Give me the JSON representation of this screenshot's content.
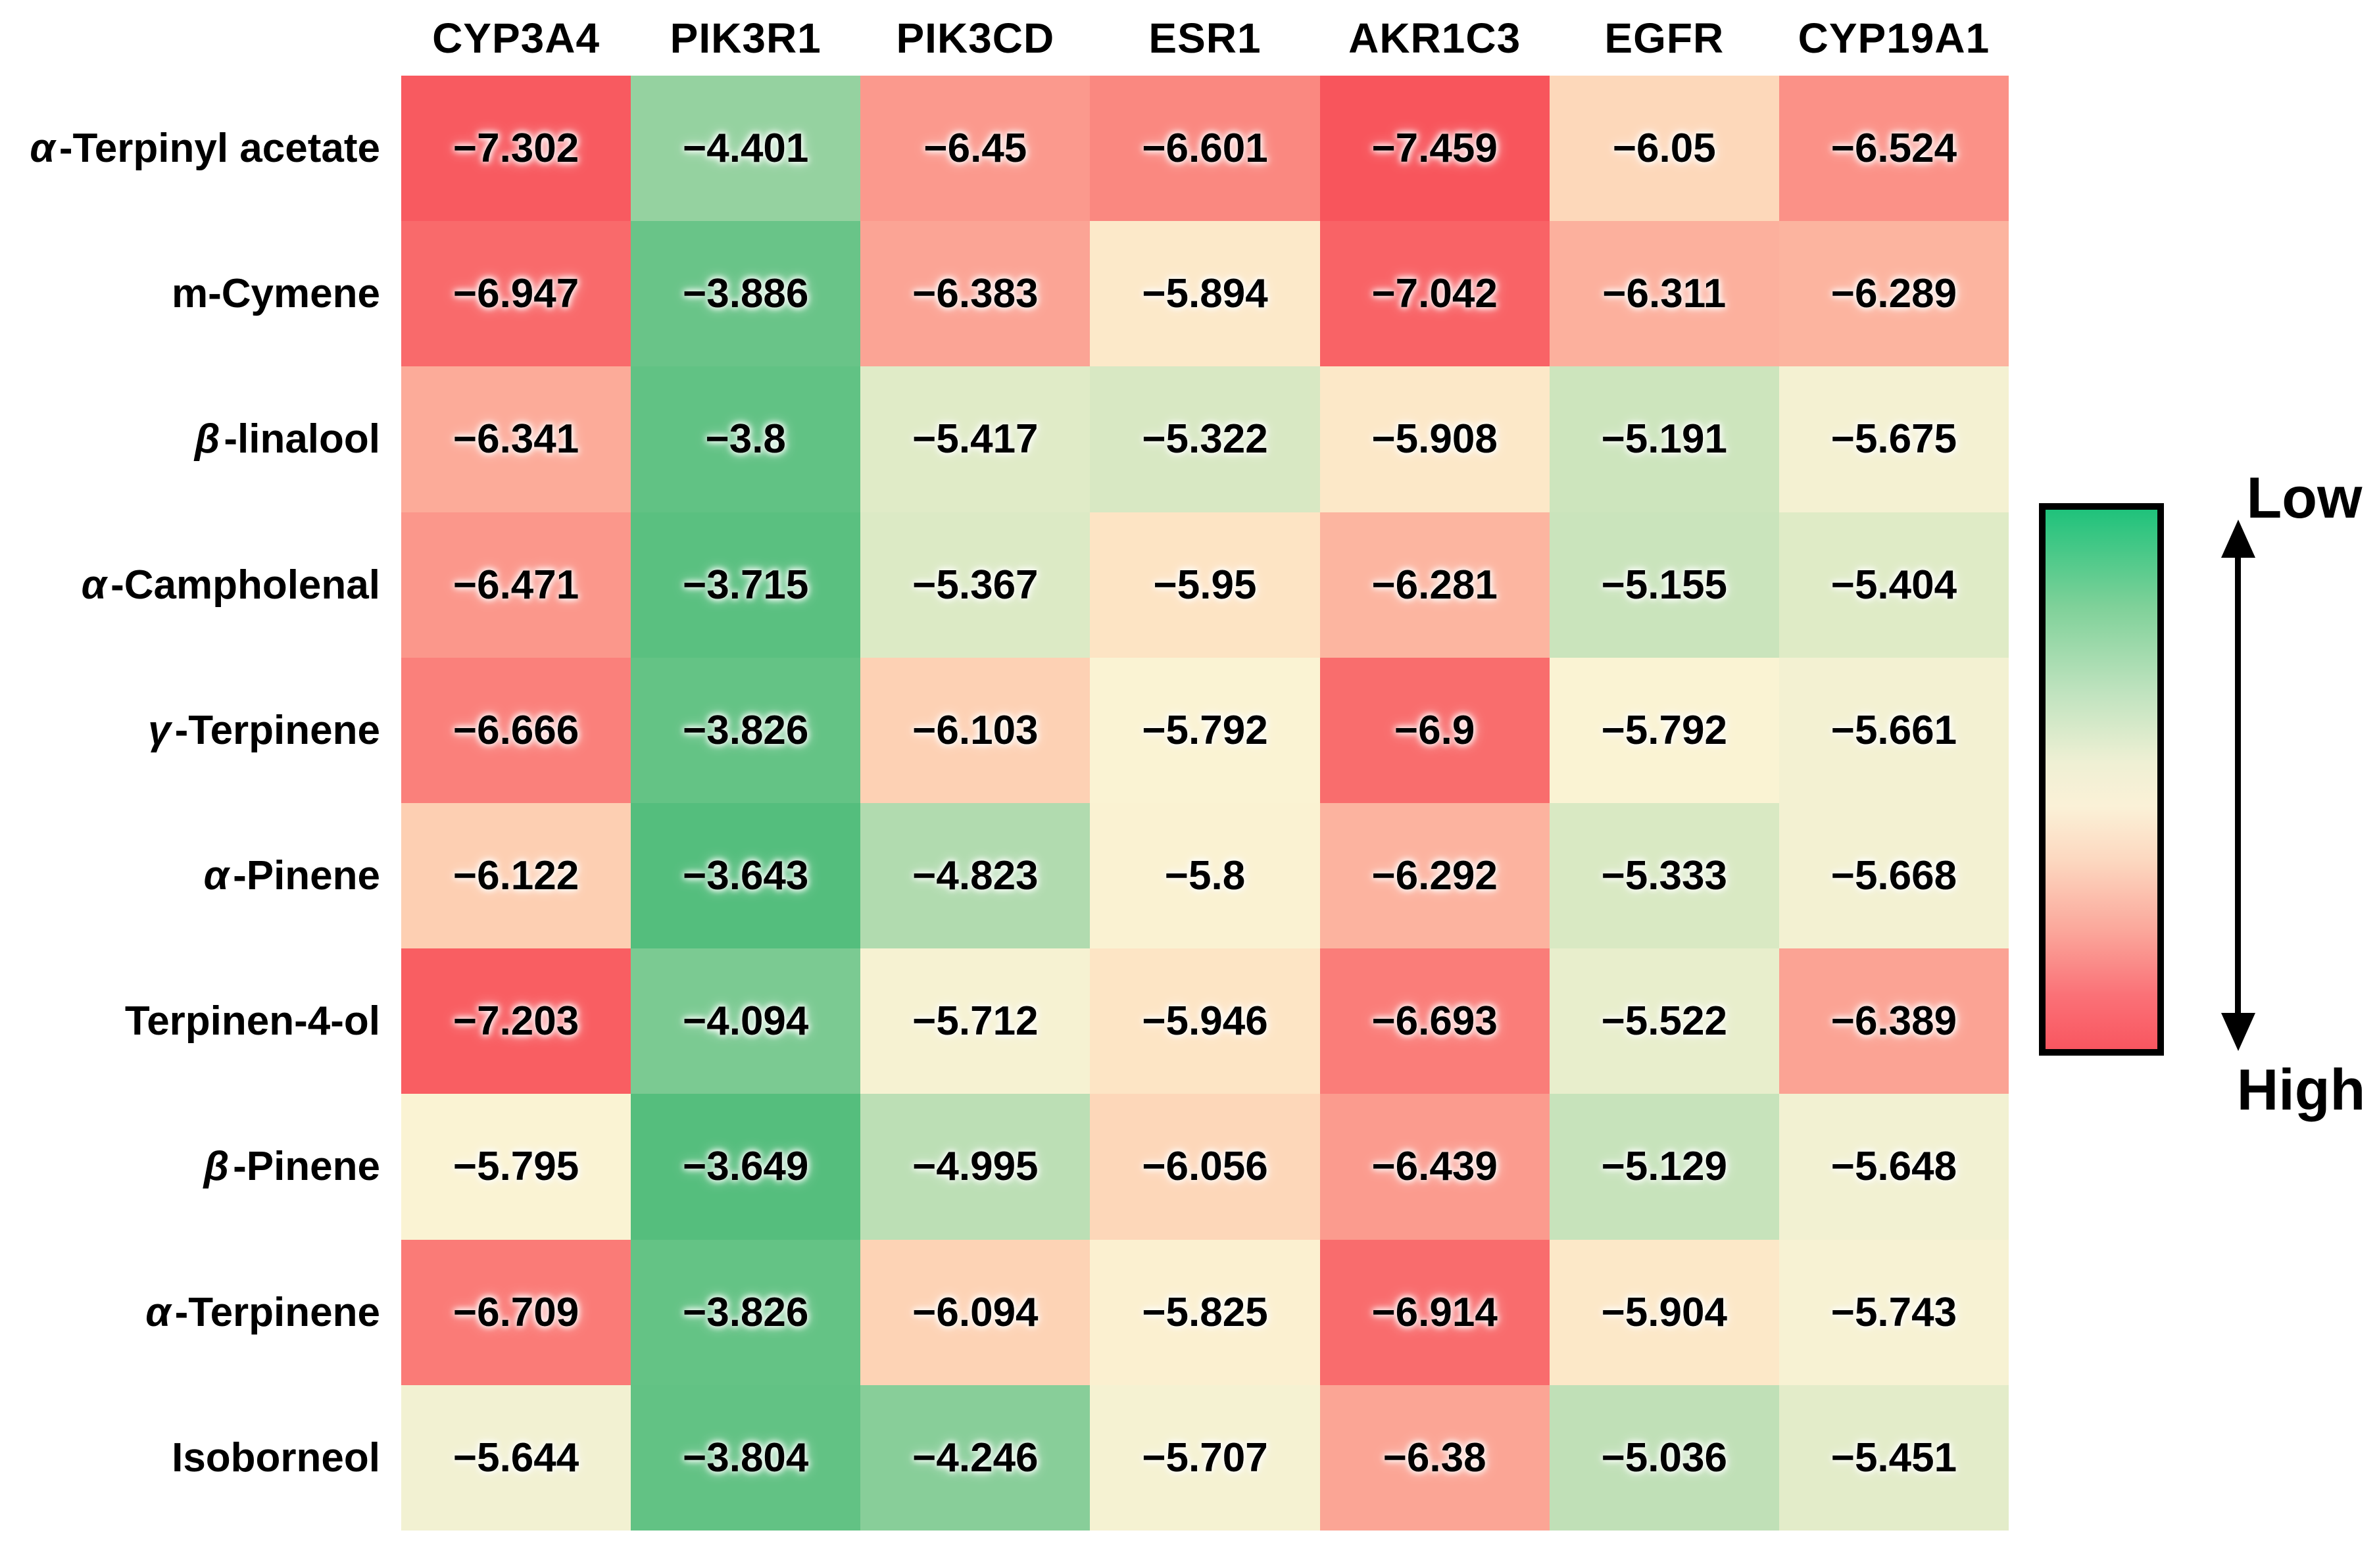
{
  "chart_data": {
    "type": "heatmap",
    "title": "",
    "columns": [
      "CYP3A4",
      "PIK3R1",
      "PIK3CD",
      "ESR1",
      "AKR1C3",
      "EGFR",
      "CYP19A1"
    ],
    "rows": [
      "α -Terpinyl acetate",
      "m-Cymene",
      "β -linalool",
      "α -Campholenal",
      "γ-Terpinene",
      "α -Pinene",
      "Terpinen-4-ol",
      "β -Pinene",
      "α -Terpinene",
      "Isoborneol"
    ],
    "values": [
      [
        -7.302,
        -4.401,
        -6.45,
        -6.601,
        -7.459,
        -6.05,
        -6.524
      ],
      [
        -6.947,
        -3.886,
        -6.383,
        -5.894,
        -7.042,
        -6.311,
        -6.289
      ],
      [
        -6.341,
        -3.8,
        -5.417,
        -5.322,
        -5.908,
        -5.191,
        -5.675
      ],
      [
        -6.471,
        -3.715,
        -5.367,
        -5.95,
        -6.281,
        -5.155,
        -5.404
      ],
      [
        -6.666,
        -3.826,
        -6.103,
        -5.792,
        -6.9,
        -5.792,
        -5.661
      ],
      [
        -6.122,
        -3.643,
        -4.823,
        -5.8,
        -6.292,
        -5.333,
        -5.668
      ],
      [
        -7.203,
        -4.094,
        -5.712,
        -5.946,
        -6.693,
        -5.522,
        -6.389
      ],
      [
        -5.795,
        -3.649,
        -4.995,
        -6.056,
        -6.439,
        -5.129,
        -5.648
      ],
      [
        -6.709,
        -3.826,
        -6.094,
        -5.825,
        -6.914,
        -5.904,
        -5.743
      ],
      [
        -5.644,
        -3.804,
        -4.246,
        -5.707,
        -6.38,
        -5.036,
        -5.451
      ]
    ],
    "minus_glyph": "−",
    "color_scale": {
      "green_end_value": -3.643,
      "red_end_value": -7.459,
      "cell_color_stops": [
        [
          0.0,
          "#54BE7D"
        ],
        [
          0.199,
          "#95D2A0"
        ],
        [
          0.354,
          "#BCDFB5"
        ],
        [
          0.465,
          "#E0EBC7"
        ],
        [
          0.524,
          "#F2F1D2"
        ],
        [
          0.563,
          "#FAF3D3"
        ],
        [
          0.605,
          "#FDE4C4"
        ],
        [
          0.65,
          "#FDCFB2"
        ],
        [
          0.736,
          "#FB998D"
        ],
        [
          0.804,
          "#FA7B77"
        ],
        [
          0.891,
          "#F96366"
        ],
        [
          1.0,
          "#F8555C"
        ]
      ]
    },
    "legend": {
      "low_label": "Low",
      "high_label": "High",
      "gradient_stops": [
        [
          0.0,
          "#1FC27B"
        ],
        [
          0.18,
          "#7FD199"
        ],
        [
          0.34,
          "#C0E3BF"
        ],
        [
          0.47,
          "#EFF0D4"
        ],
        [
          0.55,
          "#FBF1D7"
        ],
        [
          0.65,
          "#FCD8C0"
        ],
        [
          0.78,
          "#FBA79B"
        ],
        [
          0.9,
          "#FA7177"
        ],
        [
          1.0,
          "#F95660"
        ]
      ],
      "border_color": "#000000"
    },
    "layout": {
      "grid_on": false,
      "legend_position": "right"
    }
  }
}
